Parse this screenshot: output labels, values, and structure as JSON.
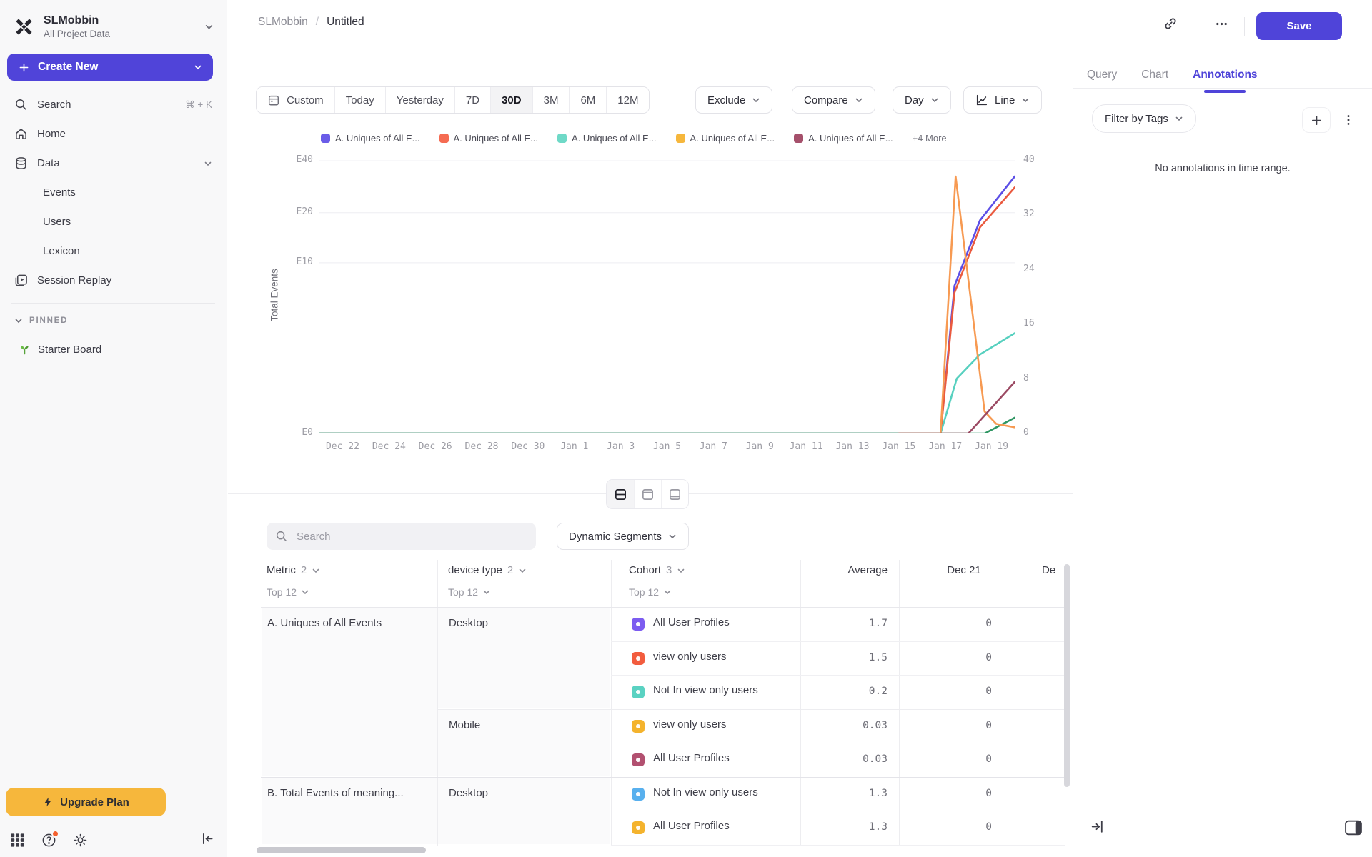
{
  "colors": {
    "accent": "#5044d9",
    "upgrade": "#f6b73c",
    "active_tab": "#4f44d9",
    "selected_range_bg": "#f3f3f5"
  },
  "sidebar": {
    "workspace_name": "SLMobbin",
    "workspace_subtitle": "All Project Data",
    "create_new_label": "Create New",
    "nav": [
      {
        "label": "Search",
        "icon": "search",
        "shortcut": "⌘ + K"
      },
      {
        "label": "Home",
        "icon": "home"
      },
      {
        "label": "Data",
        "icon": "database",
        "expandable": true
      },
      {
        "label": "Events",
        "sub": true
      },
      {
        "label": "Users",
        "sub": true
      },
      {
        "label": "Lexicon",
        "sub": true
      },
      {
        "label": "Session Replay",
        "icon": "session-replay"
      }
    ],
    "pinned_header": "PINNED",
    "pinned_items": [
      {
        "label": "Starter Board",
        "icon": "seedling"
      }
    ],
    "upgrade_label": "Upgrade Plan"
  },
  "topbar": {
    "breadcrumb_project": "SLMobbin",
    "breadcrumb_separator": "/",
    "breadcrumb_title": "Untitled",
    "save_label": "Save"
  },
  "toolbar": {
    "date_ranges": [
      {
        "label": "Custom",
        "icon": "calendar"
      },
      {
        "label": "Today"
      },
      {
        "label": "Yesterday"
      },
      {
        "label": "7D"
      },
      {
        "label": "30D",
        "selected": true
      },
      {
        "label": "3M"
      },
      {
        "label": "6M"
      },
      {
        "label": "12M"
      }
    ],
    "exclude_label": "Exclude",
    "compare_label": "Compare",
    "interval_label": "Day",
    "chart_type_label": "Line"
  },
  "chart_data": {
    "type": "line",
    "ylabel": "Total Events",
    "x_domain": [
      0,
      30
    ],
    "y_domain": [
      0,
      40
    ],
    "grid": true,
    "legend_position": "top",
    "legend": [
      {
        "label": "A. Uniques of All E...",
        "color": "#6a5ce8"
      },
      {
        "label": "A. Uniques of All E...",
        "color": "#f56b52"
      },
      {
        "label": "A. Uniques of All E...",
        "color": "#6fd9c7"
      },
      {
        "label": "A. Uniques of All E...",
        "color": "#f6b73c"
      },
      {
        "label": "A. Uniques of All E...",
        "color": "#a5506b"
      }
    ],
    "legend_more": "+4 More",
    "left_ticks": [
      {
        "label": "E40",
        "f": 0.008
      },
      {
        "label": "E20",
        "f": 0.197
      },
      {
        "label": "E10",
        "f": 0.379
      },
      {
        "label": "E0",
        "f": 1
      }
    ],
    "right_ticks": [
      {
        "label": "40",
        "f": 0.008
      },
      {
        "label": "32",
        "f": 0.206
      },
      {
        "label": "24",
        "f": 0.405
      },
      {
        "label": "16",
        "f": 0.603
      },
      {
        "label": "8",
        "f": 0.802
      },
      {
        "label": "0",
        "f": 1
      }
    ],
    "x_ticks": [
      {
        "label": "Dec 22",
        "day": 1
      },
      {
        "label": "Dec 24",
        "day": 3
      },
      {
        "label": "Dec 26",
        "day": 5
      },
      {
        "label": "Dec 28",
        "day": 7
      },
      {
        "label": "Dec 30",
        "day": 9
      },
      {
        "label": "Jan 1",
        "day": 11
      },
      {
        "label": "Jan 3",
        "day": 13
      },
      {
        "label": "Jan 5",
        "day": 15
      },
      {
        "label": "Jan 7",
        "day": 17
      },
      {
        "label": "Jan 9",
        "day": 19
      },
      {
        "label": "Jan 11",
        "day": 21
      },
      {
        "label": "Jan 13",
        "day": 23
      },
      {
        "label": "Jan 15",
        "day": 25
      },
      {
        "label": "Jan 17",
        "day": 27
      },
      {
        "label": "Jan 19",
        "day": 29
      }
    ],
    "series": [
      {
        "color": "#5b4ee6",
        "points": [
          [
            0,
            0
          ],
          [
            26.8,
            0
          ],
          [
            27.4,
            21.5
          ],
          [
            28.5,
            31
          ],
          [
            30,
            37.4
          ]
        ]
      },
      {
        "color": "#ea5a3f",
        "points": [
          [
            0,
            0
          ],
          [
            26.8,
            0
          ],
          [
            27.4,
            20.5
          ],
          [
            28.5,
            30
          ],
          [
            30,
            35.8
          ]
        ]
      },
      {
        "color": "#57d0bf",
        "points": [
          [
            0,
            0
          ],
          [
            26.8,
            0
          ],
          [
            27.5,
            8
          ],
          [
            28.5,
            11.5
          ],
          [
            30,
            14.6
          ]
        ]
      },
      {
        "color": "#2f9663",
        "points": [
          [
            0,
            0
          ],
          [
            28.7,
            0
          ],
          [
            30,
            2.3
          ]
        ]
      },
      {
        "color": "#f79a52",
        "points": [
          [
            25,
            0
          ],
          [
            26.8,
            0
          ],
          [
            27.45,
            37.4
          ],
          [
            28.7,
            3.2
          ],
          [
            29.2,
            1.4
          ],
          [
            30,
            0.9
          ]
        ]
      },
      {
        "color": "#9b4a63",
        "points": [
          [
            25,
            0
          ],
          [
            28,
            0
          ],
          [
            30,
            7.5
          ]
        ]
      }
    ]
  },
  "segment_bar": {
    "search_placeholder": "Search",
    "segments_label": "Dynamic Segments"
  },
  "table": {
    "headers": [
      {
        "label": "Metric",
        "count": "2",
        "sub": "Top 12"
      },
      {
        "label": "device type",
        "count": "2",
        "sub": "Top 12"
      },
      {
        "label": "Cohort",
        "count": "3",
        "sub": "Top 12"
      },
      {
        "label": "Average"
      },
      {
        "label": "Dec 21"
      },
      {
        "label": "De"
      }
    ],
    "groups": [
      {
        "metric": "A. Uniques of All Events",
        "devices": [
          {
            "device": "Desktop",
            "cohorts": [
              {
                "name": "All User Profiles",
                "color": "#7c5cf0",
                "average": "1.7",
                "dec21": "0"
              },
              {
                "name": "view only users",
                "color": "#f25c3e",
                "average": "1.5",
                "dec21": "0"
              },
              {
                "name": "Not In view only users",
                "color": "#5ad2c2",
                "average": "0.2",
                "dec21": "0"
              }
            ]
          },
          {
            "device": "Mobile",
            "cohorts": [
              {
                "name": "view only users",
                "color": "#f4b32d",
                "average": "0.03",
                "dec21": "0"
              },
              {
                "name": "All User Profiles",
                "color": "#b25070",
                "average": "0.03",
                "dec21": "0"
              }
            ]
          }
        ]
      },
      {
        "metric": "B. Total Events of meaning...",
        "devices": [
          {
            "device": "Desktop",
            "cohorts": [
              {
                "name": "Not In view only users",
                "color": "#58b0ee",
                "average": "1.3",
                "dec21": "0"
              },
              {
                "name": "All User Profiles",
                "color": "#f4b32d",
                "average": "1.3",
                "dec21": "0"
              }
            ]
          }
        ]
      }
    ]
  },
  "panel": {
    "tabs": [
      {
        "label": "Query"
      },
      {
        "label": "Chart"
      },
      {
        "label": "Annotations",
        "active": true
      }
    ],
    "filter_label": "Filter by Tags",
    "empty_message": "No annotations in time range."
  }
}
